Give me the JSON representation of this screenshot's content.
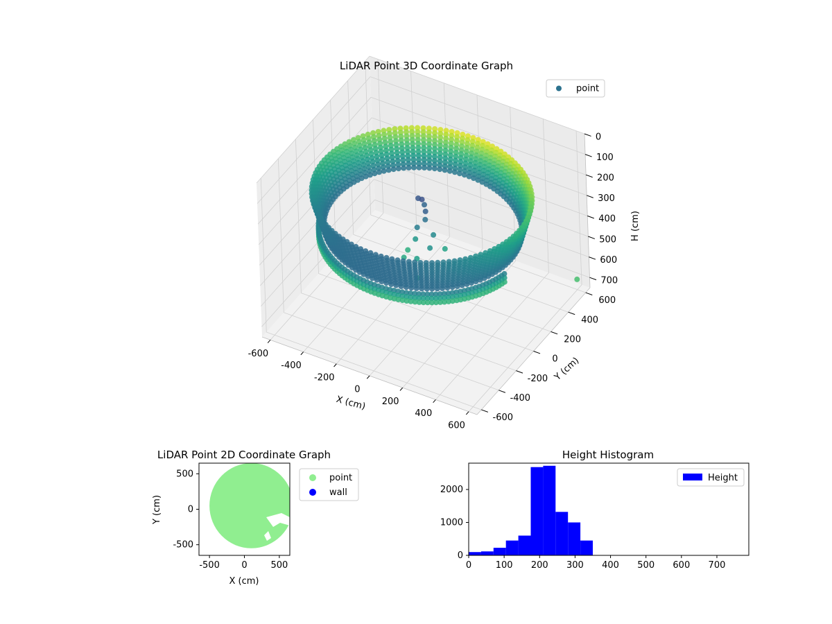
{
  "chart_data": [
    {
      "type": "scatter3d",
      "title": "LiDAR Point 3D Coordinate Graph",
      "xlabel": "X (cm)",
      "ylabel": "Y (cm)",
      "zlabel": "H (cm)",
      "xlim": [
        -650,
        650
      ],
      "ylim": [
        -650,
        650
      ],
      "zlim": [
        750,
        0
      ],
      "xticks": [
        -600,
        -400,
        -200,
        0,
        200,
        400,
        600
      ],
      "yticks": [
        -600,
        -400,
        -200,
        0,
        200,
        400,
        600
      ],
      "zticks": [
        0,
        100,
        200,
        300,
        400,
        500,
        600,
        700
      ],
      "legend": [
        "point"
      ],
      "legend_position": "top-right",
      "colormap": "viridis",
      "grid": true,
      "series": [
        {
          "name": "point",
          "description_points": [
            {
              "x": 0,
              "y": 0,
              "h": 210
            },
            {
              "x": -60,
              "y": 40,
              "h": 230
            },
            {
              "x": 40,
              "y": -20,
              "h": 240
            },
            {
              "x": -20,
              "y": 60,
              "h": 350
            },
            {
              "x": 600,
              "y": 600,
              "h": 700
            }
          ]
        }
      ]
    },
    {
      "type": "scatter",
      "title": "LiDAR Point 2D Coordinate Graph",
      "xlabel": "X (cm)",
      "ylabel": "Y (cm)",
      "xlim": [
        -650,
        650
      ],
      "ylim": [
        -650,
        650
      ],
      "xticks": [
        -500,
        0,
        500
      ],
      "yticks": [
        -500,
        0,
        500
      ],
      "legend_position": "outside-right",
      "series": [
        {
          "name": "point",
          "color": "#90ee90",
          "shape": "filled-disc",
          "center": [
            0,
            0
          ],
          "radius": 600
        },
        {
          "name": "wall",
          "color": "#0000ff",
          "values": []
        }
      ]
    },
    {
      "type": "bar",
      "title": "Height Histogram",
      "legend": [
        "Height"
      ],
      "legend_position": "top-right",
      "color": "#0000ff",
      "xlim": [
        0,
        790
      ],
      "ylim": [
        0,
        2800
      ],
      "xticks": [
        0,
        100,
        200,
        300,
        400,
        500,
        600,
        700
      ],
      "yticks": [
        0,
        1000,
        2000
      ],
      "bin_edges": [
        0,
        35,
        70,
        105,
        140,
        175,
        210,
        245,
        280,
        315,
        350
      ],
      "values": [
        100,
        120,
        230,
        450,
        600,
        2680,
        2720,
        1320,
        1000,
        450
      ]
    }
  ]
}
